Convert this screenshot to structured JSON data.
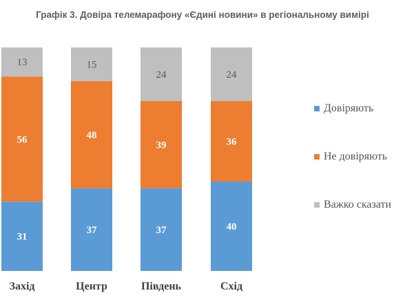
{
  "chart_data": {
    "type": "bar",
    "stacked": true,
    "title": "Графік 3. Довіра телемарафону «Єдині новини» в регіональному вимірі",
    "categories": [
      "Захід",
      "Центр",
      "Південь",
      "Схід"
    ],
    "series": [
      {
        "name": "Довіряють",
        "values": [
          31,
          37,
          37,
          40
        ],
        "color": "#5b9bd5"
      },
      {
        "name": "Не довіряють",
        "values": [
          56,
          48,
          39,
          36
        ],
        "color": "#ed7d31"
      },
      {
        "name": "Важко сказати",
        "values": [
          13,
          15,
          24,
          24
        ],
        "color": "#bfbfbf"
      }
    ],
    "ylim": [
      0,
      100
    ],
    "grid": false,
    "legend_position": "right"
  }
}
